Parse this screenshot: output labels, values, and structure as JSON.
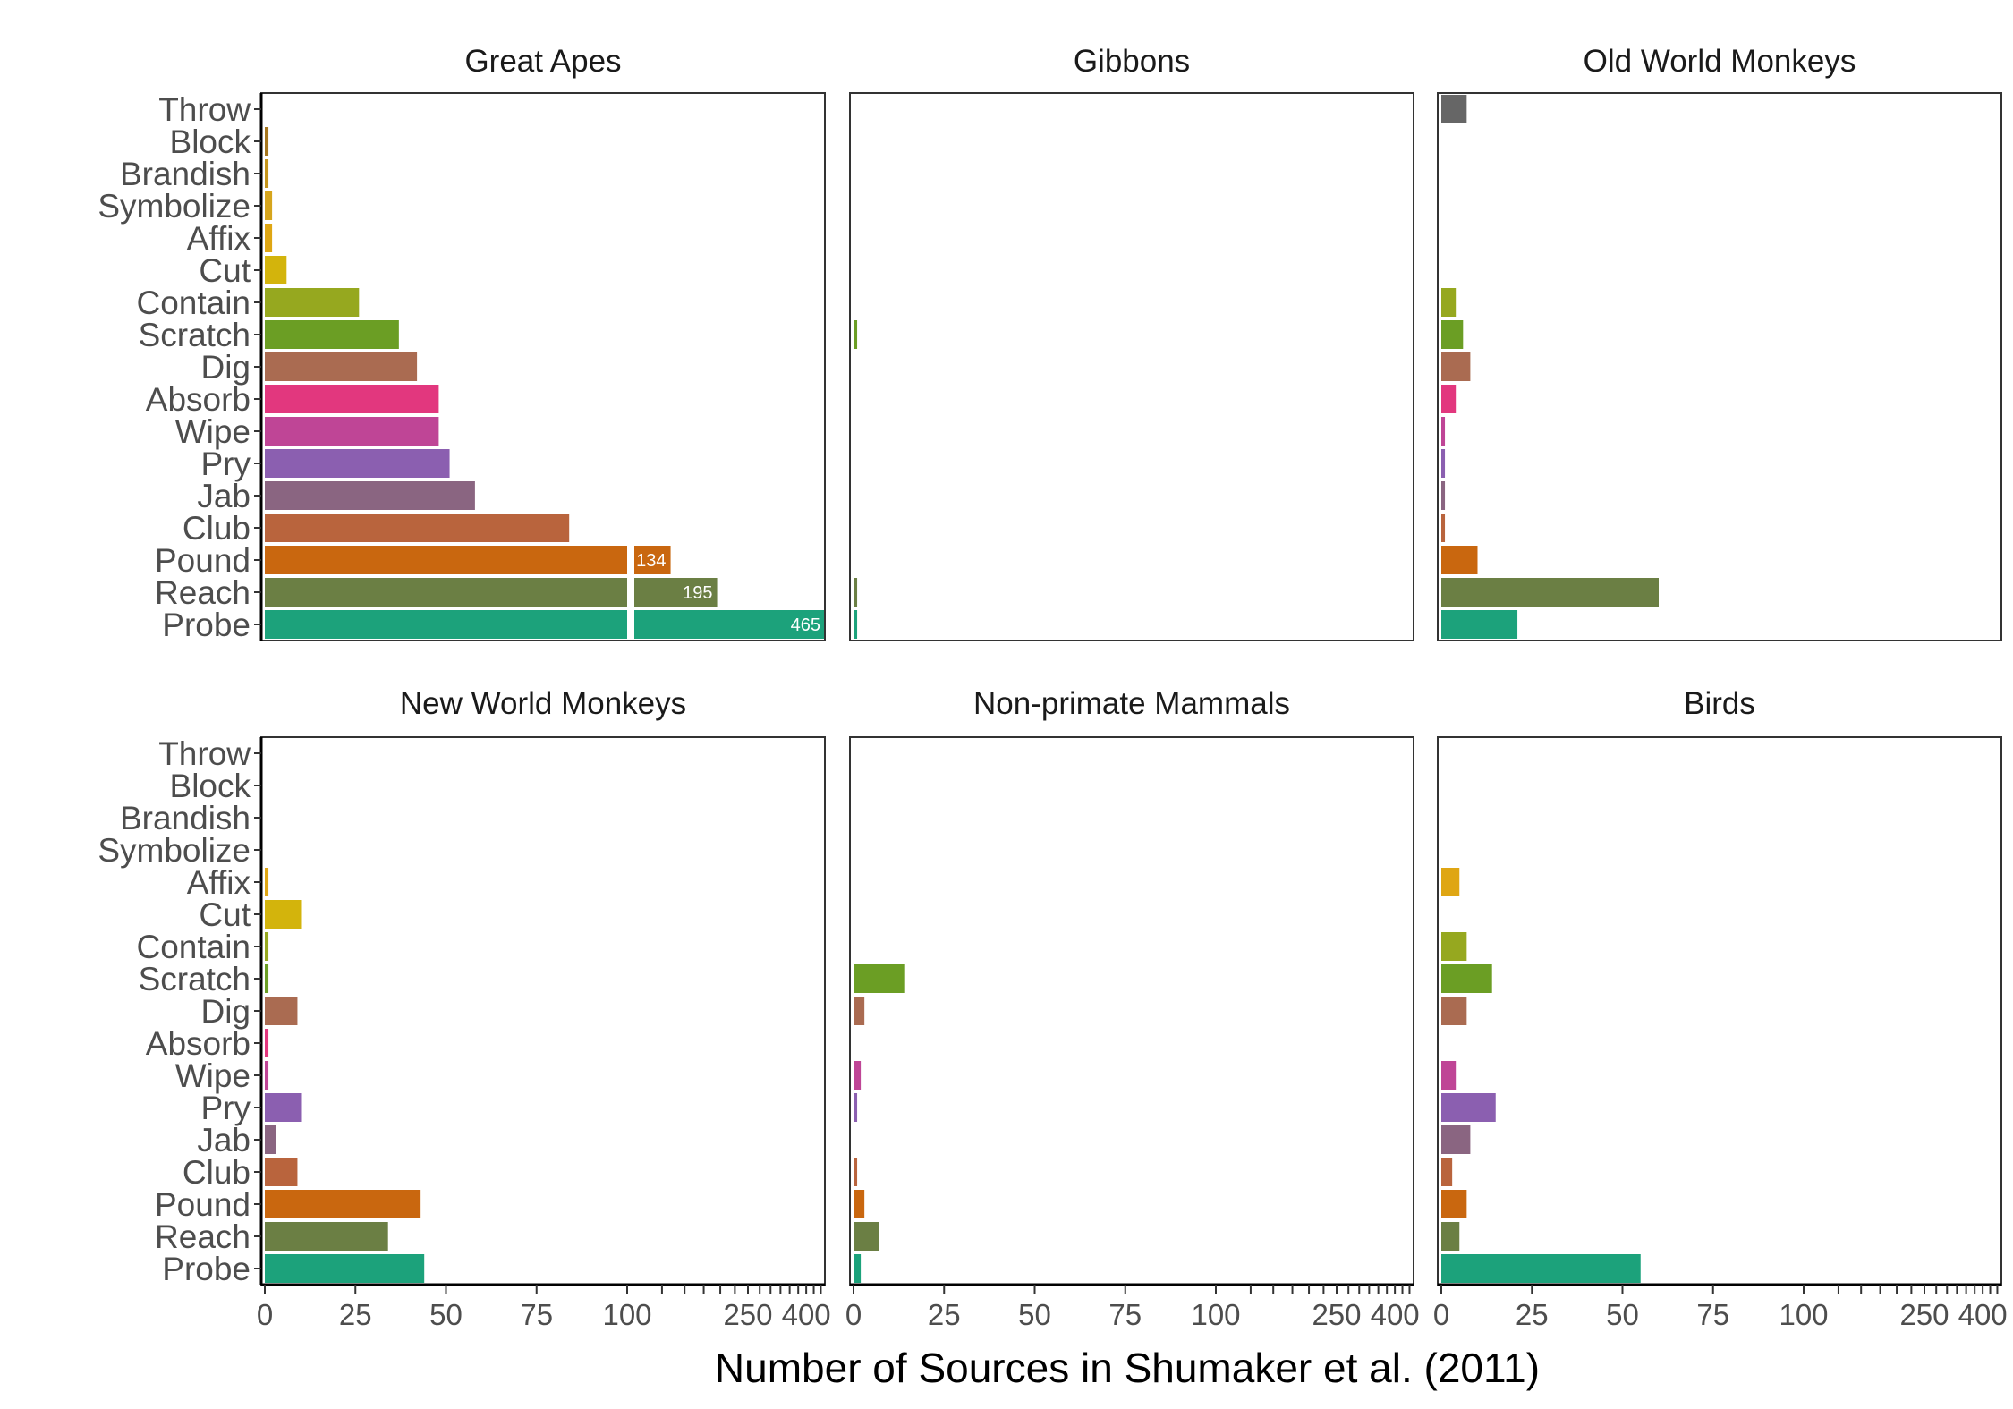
{
  "chart_data": {
    "type": "bar",
    "orientation": "horizontal",
    "xlabel": "Number of Sources in Shumaker et al. (2011)",
    "x_scale": "piecewise: linear 0–100, then log-spaced 100–465 with axis break",
    "x_ticks": [
      "0",
      "25",
      "50",
      "75",
      "100",
      "250",
      "400"
    ],
    "categories": [
      "Throw",
      "Block",
      "Brandish",
      "Symbolize",
      "Affix",
      "Cut",
      "Contain",
      "Scratch",
      "Dig",
      "Absorb",
      "Wipe",
      "Pry",
      "Jab",
      "Club",
      "Pound",
      "Reach",
      "Probe"
    ],
    "colors": {
      "Throw": "#666666",
      "Block": "#a6761d",
      "Brandish": "#c5951b",
      "Symbolize": "#d6a51c",
      "Affix": "#dfa613",
      "Cut": "#d3b40c",
      "Contain": "#96a81f",
      "Scratch": "#6b9e24",
      "Dig": "#aa6b51",
      "Absorb": "#e2377e",
      "Wipe": "#bf4596",
      "Pry": "#8b5fb0",
      "Jab": "#8a6581",
      "Club": "#b9643d",
      "Pound": "#c9670f",
      "Reach": "#6b7f44",
      "Probe": "#1ca27b"
    },
    "facets": [
      {
        "title": "Great Apes",
        "values": {
          "Block": 1,
          "Brandish": 1,
          "Symbolize": 2,
          "Affix": 2,
          "Cut": 6,
          "Contain": 26,
          "Scratch": 37,
          "Dig": 42,
          "Absorb": 48,
          "Wipe": 48,
          "Pry": 51,
          "Jab": 58,
          "Club": 84,
          "Pound": 134,
          "Reach": 195,
          "Probe": 465
        },
        "labels": {
          "Pound": "134",
          "Reach": "195",
          "Probe": "465"
        }
      },
      {
        "title": "Gibbons",
        "values": {
          "Scratch": 1,
          "Reach": 1,
          "Probe": 1
        },
        "labels": {}
      },
      {
        "title": "Old World Monkeys",
        "values": {
          "Throw": 7,
          "Contain": 4,
          "Scratch": 6,
          "Dig": 8,
          "Absorb": 4,
          "Wipe": 1,
          "Pry": 1,
          "Jab": 1,
          "Club": 1,
          "Pound": 10,
          "Reach": 60,
          "Probe": 21
        },
        "labels": {}
      },
      {
        "title": "New World Monkeys",
        "values": {
          "Affix": 1,
          "Cut": 10,
          "Contain": 1,
          "Scratch": 1,
          "Dig": 9,
          "Absorb": 1,
          "Wipe": 1,
          "Pry": 10,
          "Jab": 3,
          "Club": 9,
          "Pound": 43,
          "Reach": 34,
          "Probe": 44
        },
        "labels": {}
      },
      {
        "title": "Non-primate Mammals",
        "values": {
          "Scratch": 14,
          "Dig": 3,
          "Wipe": 2,
          "Pry": 1,
          "Club": 1,
          "Pound": 3,
          "Reach": 7,
          "Probe": 2
        },
        "labels": {}
      },
      {
        "title": "Birds",
        "values": {
          "Affix": 5,
          "Contain": 7,
          "Scratch": 14,
          "Dig": 7,
          "Wipe": 4,
          "Pry": 15,
          "Jab": 8,
          "Club": 3,
          "Pound": 7,
          "Reach": 5,
          "Probe": 55
        },
        "labels": {}
      }
    ]
  }
}
